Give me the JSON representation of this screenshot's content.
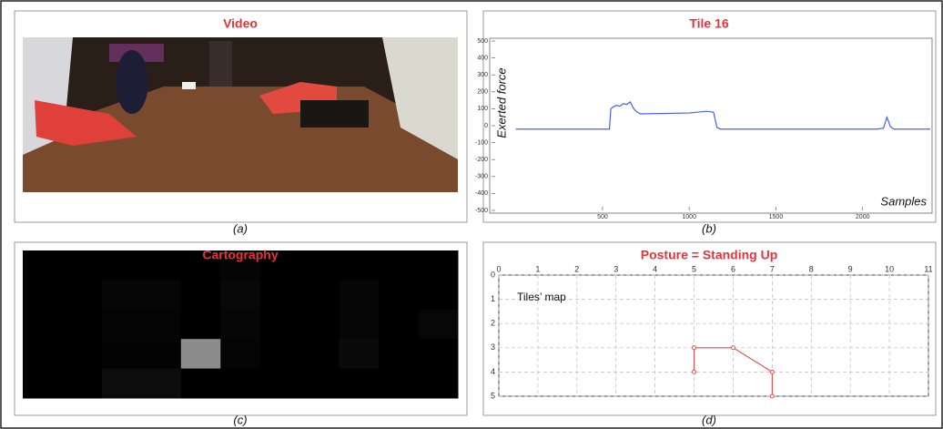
{
  "chart_data": [
    {
      "type": "image",
      "title": "Video",
      "caption": "(a)"
    },
    {
      "type": "line",
      "title": "Tile 16",
      "caption": "(b)",
      "ylabel": "Exerted force",
      "xlabel": "Samples",
      "color": "#4a5fe0",
      "x": [
        0,
        540,
        548,
        560,
        580,
        600,
        620,
        640,
        660,
        680,
        700,
        720,
        1000,
        1100,
        1140,
        1160,
        1180,
        2080,
        2120,
        2140,
        2160,
        2180,
        2390
      ],
      "values": [
        -20,
        -20,
        100,
        110,
        120,
        115,
        130,
        125,
        140,
        100,
        80,
        70,
        75,
        85,
        80,
        -10,
        -20,
        -20,
        -15,
        50,
        -5,
        -20,
        -20
      ],
      "xlim": [
        -140,
        2390
      ],
      "xticks": [
        500,
        1000,
        1500,
        2000
      ],
      "ylim": [
        -500,
        500
      ],
      "yticks": [
        -500,
        -400,
        -300,
        -200,
        -100,
        0,
        100,
        200,
        300,
        400,
        500
      ]
    },
    {
      "type": "heatmap",
      "title": "Cartography",
      "caption": "(c)",
      "values": [
        [
          0,
          0,
          0,
          0,
          0,
          5,
          0,
          0,
          0,
          0,
          0
        ],
        [
          0,
          0,
          6,
          6,
          0,
          8,
          0,
          0,
          6,
          0,
          0
        ],
        [
          0,
          0,
          4,
          4,
          0,
          6,
          0,
          0,
          6,
          0,
          7
        ],
        [
          0,
          0,
          3,
          3,
          140,
          4,
          0,
          0,
          10,
          0,
          0
        ],
        [
          0,
          0,
          12,
          12,
          0,
          0,
          0,
          0,
          0,
          0,
          0
        ]
      ]
    },
    {
      "type": "line",
      "title": "Posture = Standing Up",
      "caption": "(d)",
      "annotation": "Tiles’ map",
      "color": "#e05050",
      "x": [
        5,
        5,
        6,
        7,
        7
      ],
      "values": [
        4,
        3,
        3,
        4,
        5
      ],
      "xlim": [
        0,
        11
      ],
      "xticks": [
        0,
        1,
        2,
        3,
        4,
        5,
        6,
        7,
        8,
        9,
        10,
        11
      ],
      "ylim": [
        0,
        5
      ],
      "yticks": [
        0,
        1,
        2,
        3,
        4,
        5
      ],
      "y_inverted": true,
      "grid": true
    }
  ]
}
